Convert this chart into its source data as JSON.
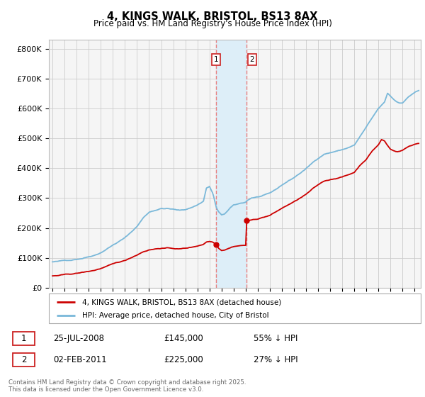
{
  "title": "4, KINGS WALK, BRISTOL, BS13 8AX",
  "subtitle": "Price paid vs. HM Land Registry's House Price Index (HPI)",
  "ytick_labels": [
    "£0",
    "£100K",
    "£200K",
    "£300K",
    "£400K",
    "£500K",
    "£600K",
    "£700K",
    "£800K"
  ],
  "yticks": [
    0,
    100000,
    200000,
    300000,
    400000,
    500000,
    600000,
    700000,
    800000
  ],
  "ylim": [
    0,
    830000
  ],
  "xlim_min": 1994.7,
  "xlim_max": 2025.5,
  "hpi_color": "#7ab8d9",
  "price_color": "#cc0000",
  "sale1_x": 2008.558,
  "sale1_y": 145000,
  "sale2_x": 2011.087,
  "sale2_y": 225000,
  "span_color": "#ddeef8",
  "vline_color": "#e88080",
  "grid_color": "#cccccc",
  "bg_color": "#f5f5f5",
  "legend_line1": "4, KINGS WALK, BRISTOL, BS13 8AX (detached house)",
  "legend_line2": "HPI: Average price, detached house, City of Bristol",
  "sale1_label": "25-JUL-2008",
  "sale1_price": "£145,000",
  "sale1_pct": "55% ↓ HPI",
  "sale2_label": "02-FEB-2011",
  "sale2_price": "£225,000",
  "sale2_pct": "27% ↓ HPI",
  "footer": "Contains HM Land Registry data © Crown copyright and database right 2025.\nThis data is licensed under the Open Government Licence v3.0."
}
